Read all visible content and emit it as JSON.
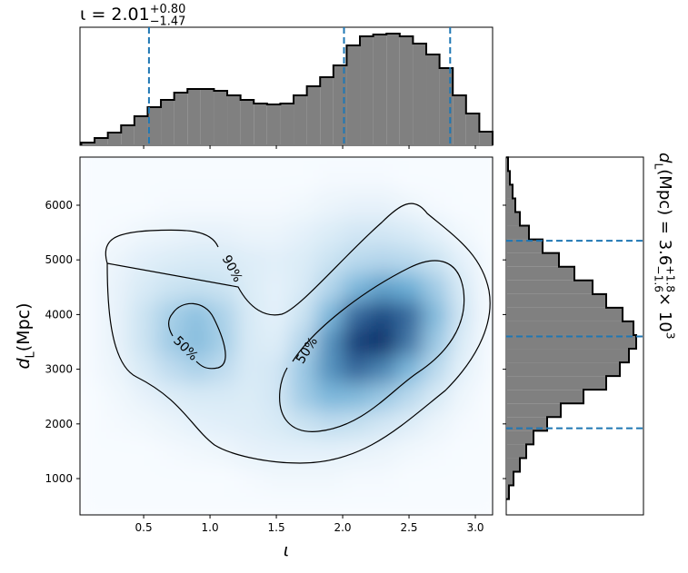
{
  "chart_data": [
    {
      "type": "histogram",
      "orientation": "vertical",
      "title": [
        {
          "text": "ι = 2.01",
          "role": "base"
        },
        {
          "text": "+0.80",
          "role": "sup"
        },
        {
          "text": "−1.47",
          "role": "under"
        }
      ],
      "bins": [
        0.03,
        0.13,
        0.23,
        0.33,
        0.43,
        0.53,
        0.63,
        0.73,
        0.83,
        0.93,
        1.03,
        1.13,
        1.23,
        1.33,
        1.43,
        1.53,
        1.63,
        1.73,
        1.83,
        1.93,
        2.03,
        2.13,
        2.23,
        2.33,
        2.43,
        2.53,
        2.63,
        2.73,
        2.83,
        2.93,
        3.03,
        3.13
      ],
      "counts": [
        3,
        8,
        14,
        22,
        32,
        42,
        50,
        58,
        62,
        62,
        60,
        55,
        50,
        46,
        45,
        46,
        55,
        65,
        75,
        88,
        110,
        120,
        122,
        123,
        120,
        112,
        100,
        85,
        55,
        35,
        15
      ],
      "xlim": [
        0.02,
        3.13
      ],
      "ylim": [
        0,
        130
      ],
      "xticks": [
        0.5,
        1,
        1.5,
        2,
        2.5,
        3
      ],
      "color": "#808080",
      "edgecolor": "#000000",
      "quantiles": [
        0.54,
        2.01,
        2.81
      ],
      "quantile_color": "#1f77b4"
    },
    {
      "type": "heatmap",
      "xlabel": [
        {
          "text": "ι",
          "role": "italic"
        }
      ],
      "ylabel": [
        {
          "text": "d",
          "role": "italic"
        },
        {
          "text": "L",
          "role": "sub"
        },
        {
          "text": " (Mpc)",
          "role": "base"
        }
      ],
      "xbins": [
        0,
        0.2,
        0.4,
        0.6,
        0.8,
        1,
        1.2,
        1.4,
        1.6,
        1.8,
        2,
        2.2,
        2.4,
        2.6,
        2.8,
        3,
        3.2
      ],
      "ybins": [
        250,
        750,
        1250,
        1750,
        2250,
        2750,
        3250,
        3750,
        4250,
        4750,
        5250,
        5750,
        6250,
        6750,
        7250
      ],
      "z": [
        [
          0,
          0,
          0,
          0,
          0,
          0,
          0,
          0,
          0,
          0,
          0,
          0,
          0,
          0,
          0,
          0
        ],
        [
          0,
          0,
          0,
          0,
          0,
          0,
          1,
          2,
          2,
          2,
          1,
          1,
          0,
          0,
          0,
          0
        ],
        [
          0,
          0,
          0,
          1,
          2,
          3,
          5,
          6,
          6,
          6,
          5,
          4,
          2,
          1,
          0,
          0
        ],
        [
          0,
          1,
          2,
          4,
          6,
          7,
          8,
          10,
          14,
          18,
          16,
          12,
          8,
          4,
          1,
          0
        ],
        [
          0,
          2,
          5,
          8,
          10,
          10,
          9,
          12,
          28,
          40,
          38,
          30,
          20,
          10,
          3,
          0
        ],
        [
          1,
          4,
          10,
          18,
          24,
          18,
          10,
          12,
          30,
          55,
          70,
          60,
          40,
          20,
          6,
          1
        ],
        [
          1,
          5,
          14,
          28,
          36,
          26,
          10,
          8,
          22,
          55,
          85,
          90,
          65,
          30,
          9,
          1
        ],
        [
          1,
          5,
          14,
          26,
          34,
          24,
          10,
          6,
          14,
          40,
          70,
          80,
          70,
          38,
          12,
          1
        ],
        [
          1,
          5,
          10,
          14,
          16,
          14,
          9,
          6,
          10,
          22,
          40,
          50,
          45,
          28,
          10,
          1
        ],
        [
          1,
          4,
          7,
          9,
          10,
          10,
          8,
          7,
          9,
          14,
          20,
          22,
          20,
          14,
          6,
          1
        ],
        [
          0,
          1,
          3,
          4,
          5,
          5,
          4,
          4,
          6,
          9,
          12,
          12,
          10,
          6,
          2,
          0
        ],
        [
          0,
          0,
          0,
          1,
          1,
          1,
          1,
          1,
          2,
          4,
          5,
          5,
          3,
          1,
          0,
          0
        ],
        [
          0,
          0,
          0,
          0,
          0,
          0,
          0,
          0,
          0,
          1,
          1,
          1,
          0,
          0,
          0,
          0
        ],
        [
          0,
          0,
          0,
          0,
          0,
          0,
          0,
          0,
          0,
          0,
          0,
          0,
          0,
          0,
          0,
          0
        ]
      ],
      "xlim": [
        0.02,
        3.13
      ],
      "ylim": [
        336,
        6880
      ],
      "xticks": [
        0.5,
        {
          "value": 1,
          "label": "1.0"
        },
        1.5,
        {
          "value": 2,
          "label": "2.0"
        },
        2.5,
        {
          "value": 3,
          "label": "3.0"
        }
      ],
      "yticks": [
        1000,
        2000,
        3000,
        4000,
        5000,
        6000
      ],
      "colormap": [
        "#f7fbff",
        "#6baed6",
        "#08306b"
      ],
      "contours": [
        {
          "level": 90,
          "label": "90%"
        },
        {
          "level": 50,
          "label": "50%"
        }
      ]
    },
    {
      "type": "histogram",
      "orientation": "horizontal",
      "label": [
        {
          "text": "d",
          "role": "italic"
        },
        {
          "text": "L",
          "role": "sub"
        },
        {
          "text": " (Mpc) = 3.6",
          "role": "base"
        },
        {
          "text": "+1.8",
          "role": "sup"
        },
        {
          "text": "−1.6",
          "role": "under"
        },
        {
          "text": " × 10",
          "role": "base"
        },
        {
          "text": "3",
          "role": "sup"
        }
      ],
      "bins": [
        625,
        875,
        1125,
        1375,
        1625,
        1875,
        2125,
        2375,
        2625,
        2875,
        3125,
        3375,
        3625,
        3875,
        4125,
        4375,
        4625,
        4875,
        5125,
        5375,
        5625,
        5875,
        6125,
        6375,
        6625,
        6875
      ],
      "counts": [
        3,
        8,
        15,
        22,
        30,
        45,
        60,
        85,
        110,
        125,
        135,
        143,
        140,
        128,
        110,
        95,
        75,
        58,
        40,
        25,
        15,
        10,
        7,
        4,
        2
      ],
      "xlim": [
        0,
        151
      ],
      "ylim": [
        336,
        6880
      ],
      "yticks": [
        1000,
        2000,
        3000,
        4000,
        5000,
        6000
      ],
      "color": "#808080",
      "edgecolor": "#000000",
      "quantiles": [
        1920,
        3600,
        5350
      ],
      "quantile_color": "#1f77b4"
    }
  ]
}
